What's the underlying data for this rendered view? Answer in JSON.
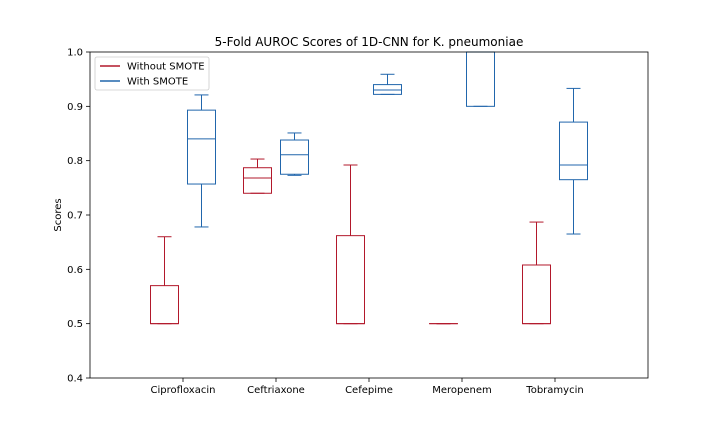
{
  "chart_data": {
    "type": "box",
    "title": "5-Fold AUROC Scores of 1D-CNN for K. pneumoniae",
    "xlabel": "",
    "ylabel": "Scores",
    "ylim": [
      0.4,
      1.0
    ],
    "yticks": [
      0.4,
      0.5,
      0.6,
      0.7,
      0.8,
      0.9,
      1.0
    ],
    "grid": false,
    "legend_position": "top-left",
    "categories": [
      "Ciprofloxacin",
      "Ceftriaxone",
      "Cefepime",
      "Meropenem",
      "Tobramycin"
    ],
    "series": [
      {
        "name": "Without SMOTE",
        "color": "#b2182b",
        "boxes": [
          {
            "whislo": 0.5,
            "q1": 0.5,
            "med": 0.5,
            "q3": 0.57,
            "whishi": 0.66
          },
          {
            "whislo": 0.74,
            "q1": 0.74,
            "med": 0.768,
            "q3": 0.787,
            "whishi": 0.803
          },
          {
            "whislo": 0.5,
            "q1": 0.5,
            "med": 0.5,
            "q3": 0.662,
            "whishi": 0.792
          },
          {
            "whislo": 0.5,
            "q1": 0.5,
            "med": 0.5,
            "q3": 0.5,
            "whishi": 0.5
          },
          {
            "whislo": 0.5,
            "q1": 0.5,
            "med": 0.5,
            "q3": 0.608,
            "whishi": 0.687
          }
        ]
      },
      {
        "name": "With SMOTE",
        "color": "#2166ac",
        "boxes": [
          {
            "whislo": 0.678,
            "q1": 0.757,
            "med": 0.84,
            "q3": 0.893,
            "whishi": 0.921
          },
          {
            "whislo": 0.773,
            "q1": 0.775,
            "med": 0.811,
            "q3": 0.838,
            "whishi": 0.851
          },
          {
            "whislo": 0.922,
            "q1": 0.922,
            "med": 0.93,
            "q3": 0.94,
            "whishi": 0.959
          },
          {
            "whislo": 0.9,
            "q1": 0.9,
            "med": 1.0,
            "q3": 1.0,
            "whishi": 1.0
          },
          {
            "whislo": 0.665,
            "q1": 0.765,
            "med": 0.792,
            "q3": 0.871,
            "whishi": 0.933
          }
        ]
      }
    ]
  }
}
